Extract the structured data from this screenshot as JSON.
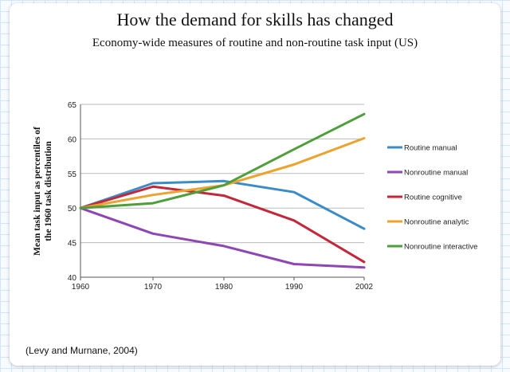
{
  "title": "How the demand for skills has changed",
  "subtitle": "Economy-wide measures of routine and non-routine task input (US)",
  "footnote": "(Levy and Murnane, 2004)",
  "chart_data": {
    "type": "line",
    "x": [
      "1960",
      "1970",
      "1980",
      "1990",
      "2002"
    ],
    "ylabel_lines": [
      "Mean task input as percentiles of",
      "the 1960 task distribution"
    ],
    "xlabel": "",
    "ylim": [
      40,
      65
    ],
    "yticks": [
      40,
      45,
      50,
      55,
      60,
      65
    ],
    "grid": true,
    "legend_position": "right",
    "series": [
      {
        "name": "Routine manual",
        "color": "#3a8cc6",
        "values": [
          50,
          53.6,
          53.9,
          52.3,
          47.0
        ]
      },
      {
        "name": "Nonroutine manual",
        "color": "#8e46b4",
        "values": [
          50,
          46.3,
          44.5,
          41.9,
          41.4
        ]
      },
      {
        "name": "Routine cognitive",
        "color": "#c4263a",
        "values": [
          50,
          53.1,
          51.8,
          48.2,
          42.2
        ]
      },
      {
        "name": "Nonroutine analytic",
        "color": "#eba32d",
        "values": [
          50,
          51.9,
          53.3,
          56.3,
          60.1
        ]
      },
      {
        "name": "Nonroutine interactive",
        "color": "#4e9e3a",
        "values": [
          50,
          50.7,
          53.3,
          58.5,
          63.6
        ]
      }
    ]
  }
}
